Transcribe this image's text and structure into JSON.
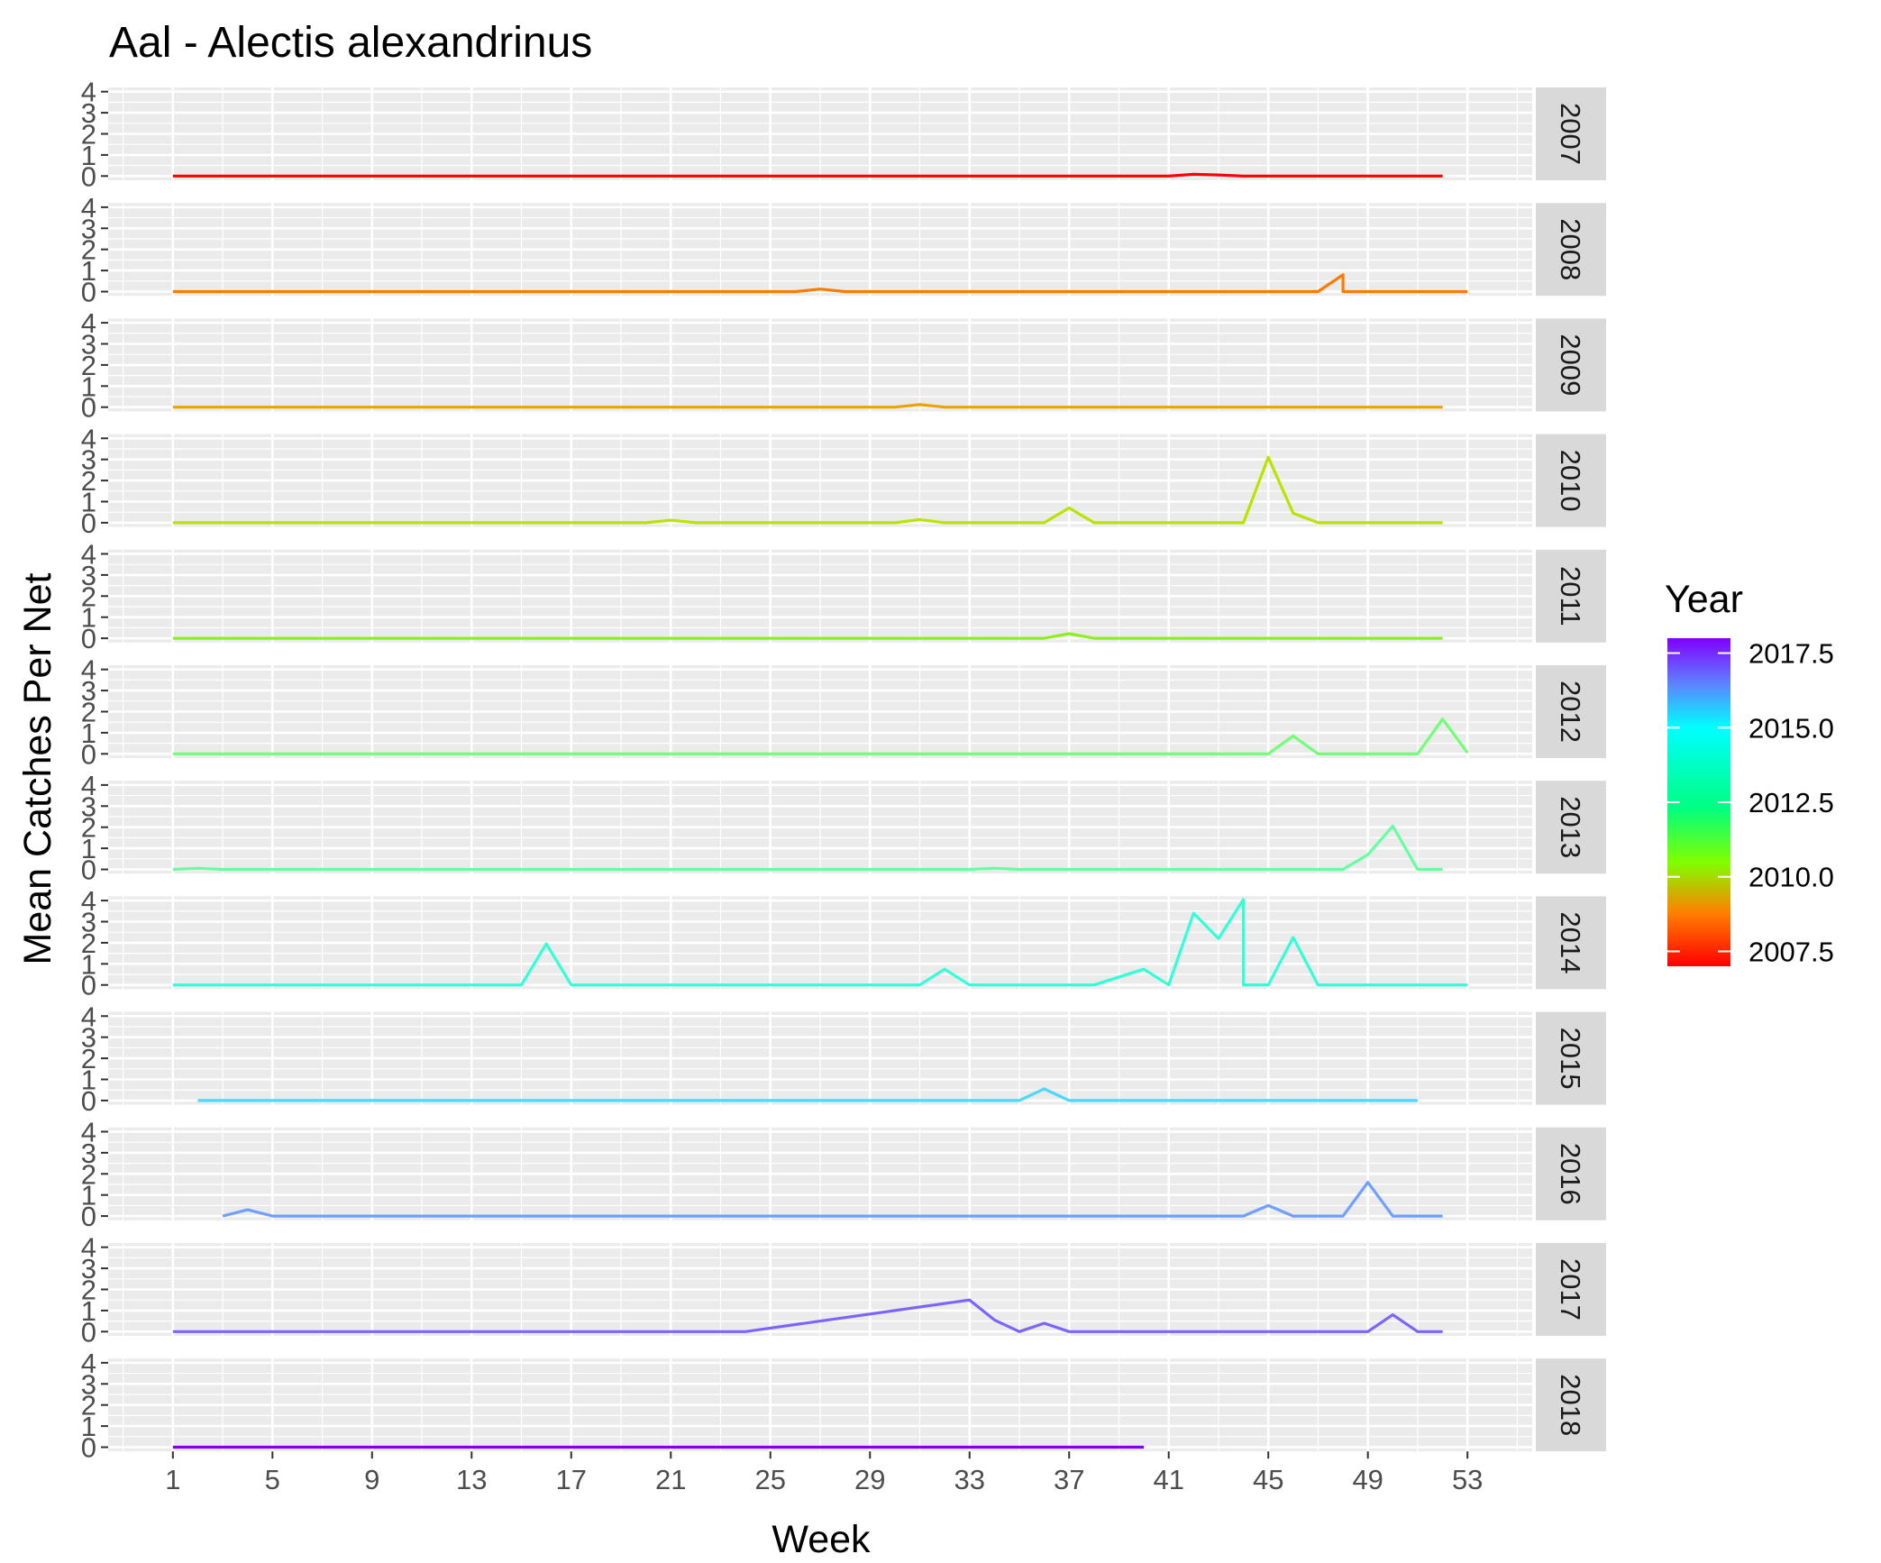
{
  "chart_data": {
    "type": "line",
    "title": "Aal - Alectis alexandrinus",
    "xlabel": "Week",
    "ylabel": "Mean Catches Per Net",
    "xlim": [
      -1.6,
      55.6
    ],
    "ylim": [
      -0.2,
      4.2
    ],
    "x_ticks": [
      1,
      5,
      9,
      13,
      17,
      21,
      25,
      29,
      33,
      37,
      41,
      45,
      49,
      53
    ],
    "y_ticks": [
      0,
      1,
      2,
      3,
      4
    ],
    "facet_by": "Year",
    "legend": {
      "title": "Year",
      "placement": "right",
      "type": "colorbar",
      "range": [
        2007,
        2018
      ],
      "ticks": [
        2007.5,
        2010.0,
        2012.5,
        2015.0,
        2017.5
      ],
      "tick_labels": [
        "2007.5",
        "2010.0",
        "2012.5",
        "2015.0",
        "2017.5"
      ],
      "gradient": [
        {
          "value": 2007,
          "color": "#FF0000"
        },
        {
          "value": 2008.8,
          "color": "#FF8000"
        },
        {
          "value": 2010.5,
          "color": "#80FF00"
        },
        {
          "value": 2012.3,
          "color": "#00FF80"
        },
        {
          "value": 2015.0,
          "color": "#00FFFF"
        },
        {
          "value": 2016.5,
          "color": "#6080FF"
        },
        {
          "value": 2018,
          "color": "#8000FF"
        }
      ]
    },
    "panels": [
      {
        "year": "2007",
        "color": "#FF0000",
        "x": [
          1,
          41,
          42,
          43,
          44,
          52
        ],
        "y": [
          0,
          0,
          0.08,
          0.05,
          0,
          0
        ]
      },
      {
        "year": "2008",
        "color": "#FF7A00",
        "x": [
          1,
          26,
          27,
          28,
          47,
          48,
          48,
          53
        ],
        "y": [
          0,
          0,
          0.12,
          0,
          0,
          0.8,
          0,
          0
        ]
      },
      {
        "year": "2009",
        "color": "#F0A000",
        "x": [
          1,
          30,
          31,
          32,
          52
        ],
        "y": [
          0,
          0,
          0.12,
          0,
          0
        ]
      },
      {
        "year": "2010",
        "color": "#B8E400",
        "x": [
          1,
          20,
          21,
          22,
          30,
          31,
          32,
          36,
          37,
          38,
          44,
          45,
          46,
          47,
          52
        ],
        "y": [
          0,
          0,
          0.12,
          0,
          0,
          0.15,
          0,
          0,
          0.7,
          0,
          0,
          3.1,
          0.45,
          0,
          0
        ]
      },
      {
        "year": "2011",
        "color": "#8CF020",
        "x": [
          1,
          36,
          37,
          38,
          52
        ],
        "y": [
          0,
          0,
          0.22,
          0,
          0
        ]
      },
      {
        "year": "2012",
        "color": "#72FF78",
        "x": [
          1,
          45,
          46,
          47,
          51,
          52,
          53
        ],
        "y": [
          0,
          0,
          0.85,
          0,
          0,
          1.65,
          0.05
        ]
      },
      {
        "year": "2013",
        "color": "#64FFA0",
        "x": [
          1,
          2,
          3,
          33,
          34,
          35,
          48,
          49,
          50,
          51,
          52
        ],
        "y": [
          0,
          0.05,
          0,
          0,
          0.05,
          0,
          0,
          0.7,
          2.05,
          0,
          0
        ]
      },
      {
        "year": "2014",
        "color": "#32FFD8",
        "x": [
          1,
          15,
          16,
          17,
          31,
          32,
          33,
          38,
          40,
          41,
          42,
          43,
          44,
          44,
          45,
          46,
          47,
          53
        ],
        "y": [
          0,
          0,
          1.95,
          0,
          0,
          0.75,
          0,
          0,
          0.75,
          0,
          3.4,
          2.2,
          4.05,
          0,
          0,
          2.25,
          0,
          0
        ]
      },
      {
        "year": "2015",
        "color": "#4CD8FF",
        "x": [
          2,
          35,
          36,
          37,
          51
        ],
        "y": [
          0,
          0,
          0.55,
          0,
          0
        ]
      },
      {
        "year": "2016",
        "color": "#70A0FF",
        "x": [
          3,
          4,
          5,
          44,
          45,
          46,
          48,
          49,
          50,
          52
        ],
        "y": [
          0,
          0.3,
          0,
          0,
          0.5,
          0,
          0,
          1.6,
          0,
          0
        ]
      },
      {
        "year": "2017",
        "color": "#7C64FF",
        "x": [
          1,
          24,
          33,
          34,
          35,
          36,
          37,
          49,
          50,
          51,
          52
        ],
        "y": [
          0,
          0,
          1.5,
          0.55,
          0,
          0.4,
          0,
          0,
          0.8,
          0,
          0
        ]
      },
      {
        "year": "2018",
        "color": "#8000F0",
        "x": [
          1,
          40
        ],
        "y": [
          0,
          0
        ]
      }
    ]
  }
}
